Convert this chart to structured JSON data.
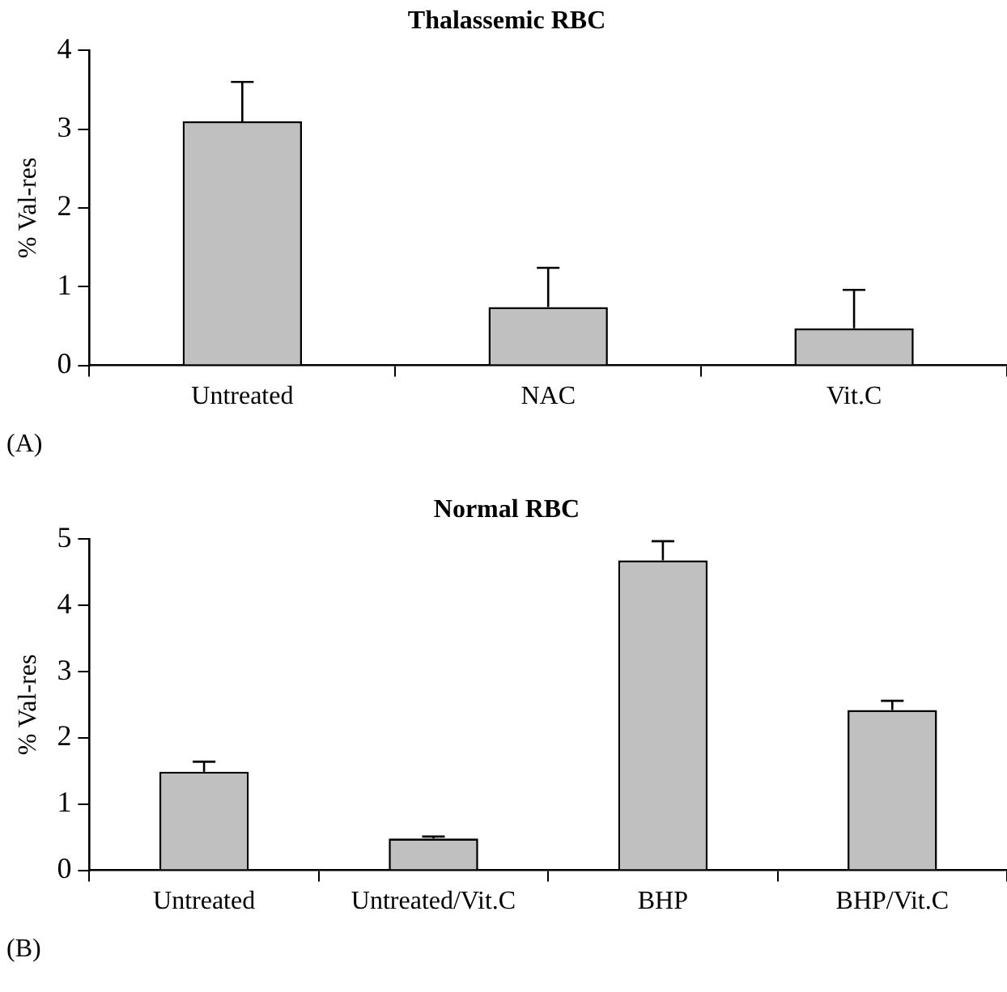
{
  "chart_data": [
    {
      "type": "bar",
      "title": "Thalassemic RBC",
      "ylabel": "% Val-res",
      "categories": [
        "Untreated",
        "NAC",
        "Vit.C"
      ],
      "color": "#c0c0c0",
      "values": [
        3.1,
        0.74,
        0.47
      ],
      "errors": [
        [
          3.1,
          3.6
        ],
        [
          0.74,
          1.24
        ],
        [
          0.47,
          0.96
        ]
      ],
      "ylim": [
        0,
        4
      ],
      "yticks": [
        0,
        1,
        2,
        3,
        4
      ],
      "grid": false,
      "legend": false,
      "annotations": [
        "(A)"
      ]
    },
    {
      "type": "bar",
      "title": "Normal RBC",
      "ylabel": "% Val-res",
      "categories": [
        "Untreated",
        "Untreated/Vit.C",
        "BHP",
        "BHP/Vit.C"
      ],
      "color": "#c0c0c0",
      "values": [
        1.49,
        0.48,
        4.68,
        2.42
      ],
      "errors": [
        [
          1.49,
          1.64
        ],
        [
          0.48,
          0.51
        ],
        [
          4.68,
          4.97
        ],
        [
          2.42,
          2.56
        ]
      ],
      "ylim": [
        0,
        5
      ],
      "yticks": [
        0,
        1,
        2,
        3,
        4,
        5
      ],
      "grid": false,
      "legend": false,
      "annotations": [
        "(B)"
      ]
    }
  ]
}
